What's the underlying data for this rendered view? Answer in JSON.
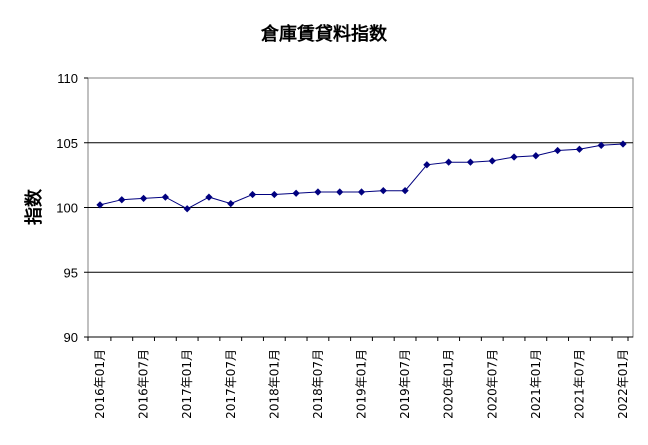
{
  "chart_data": {
    "type": "line",
    "title": "倉庫賃貸料指数",
    "xlabel": "",
    "ylabel": "指数",
    "ylim": [
      90,
      110
    ],
    "yticks": [
      "90",
      "95",
      "100",
      "105",
      "110"
    ],
    "grid": "horizontal",
    "legend": "none",
    "colors": {
      "series": "#00007f",
      "gridline": "#000000",
      "background": "#ffffff"
    },
    "x_tick_labels": [
      "2016年01月",
      "2016年07月",
      "2017年01月",
      "2017年07月",
      "2018年01月",
      "2018年07月",
      "2019年01月",
      "2019年07月",
      "2020年01月",
      "2020年07月",
      "2021年01月",
      "2021年07月",
      "2022年01月"
    ],
    "x": [
      "2016Q1",
      "2016Q2",
      "2016Q3",
      "2016Q4",
      "2017Q1",
      "2017Q2",
      "2017Q3",
      "2017Q4",
      "2018Q1",
      "2018Q2",
      "2018Q3",
      "2018Q4",
      "2019Q1",
      "2019Q2",
      "2019Q3",
      "2019Q4",
      "2020Q1",
      "2020Q2",
      "2020Q3",
      "2020Q4",
      "2021Q1",
      "2021Q2",
      "2021Q3",
      "2021Q4",
      "2022Q1"
    ],
    "series": [
      {
        "values": [
          100.2,
          100.6,
          100.7,
          100.8,
          99.9,
          100.8,
          100.3,
          101.0,
          101.0,
          101.1,
          101.2,
          101.2,
          101.2,
          101.3,
          101.3,
          103.3,
          103.5,
          103.5,
          103.6,
          103.9,
          104.0,
          104.4,
          104.5,
          104.8,
          104.9
        ]
      }
    ]
  }
}
